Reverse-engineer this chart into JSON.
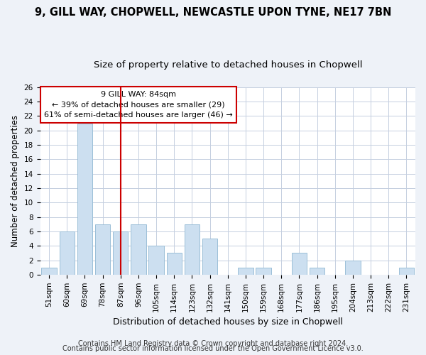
{
  "title1": "9, GILL WAY, CHOPWELL, NEWCASTLE UPON TYNE, NE17 7BN",
  "title2": "Size of property relative to detached houses in Chopwell",
  "xlabel": "Distribution of detached houses by size in Chopwell",
  "ylabel": "Number of detached properties",
  "categories": [
    "51sqm",
    "60sqm",
    "69sqm",
    "78sqm",
    "87sqm",
    "96sqm",
    "105sqm",
    "114sqm",
    "123sqm",
    "132sqm",
    "141sqm",
    "150sqm",
    "159sqm",
    "168sqm",
    "177sqm",
    "186sqm",
    "195sqm",
    "204sqm",
    "213sqm",
    "222sqm",
    "231sqm"
  ],
  "values": [
    1,
    6,
    21,
    7,
    6,
    7,
    4,
    3,
    7,
    5,
    0,
    1,
    1,
    0,
    3,
    1,
    0,
    2,
    0,
    0,
    1
  ],
  "bar_color": "#ccdff0",
  "bar_edge_color": "#9bbfd8",
  "ylim": [
    0,
    26
  ],
  "yticks": [
    0,
    2,
    4,
    6,
    8,
    10,
    12,
    14,
    16,
    18,
    20,
    22,
    24,
    26
  ],
  "vline_x": 4.0,
  "vline_color": "#cc0000",
  "annotation_box_text": "9 GILL WAY: 84sqm\n← 39% of detached houses are smaller (29)\n61% of semi-detached houses are larger (46) →",
  "footer1": "Contains HM Land Registry data © Crown copyright and database right 2024.",
  "footer2": "Contains public sector information licensed under the Open Government Licence v3.0.",
  "bg_color": "#eef2f8",
  "plot_bg_color": "#ffffff",
  "grid_color": "#c5cfe0",
  "title1_fontsize": 10.5,
  "title2_fontsize": 9.5,
  "xlabel_fontsize": 9,
  "ylabel_fontsize": 8.5,
  "tick_fontsize": 7.5,
  "annotation_fontsize": 8,
  "footer_fontsize": 7
}
